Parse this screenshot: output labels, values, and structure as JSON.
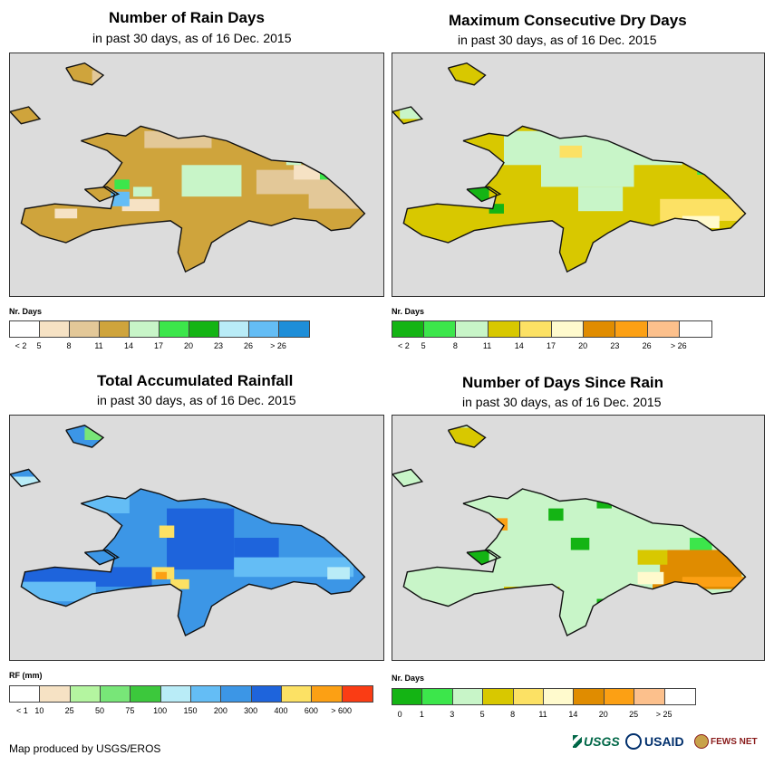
{
  "panels": [
    {
      "title": "Number of Rain Days",
      "subtitle": "in past 30 days, as of 16 Dec. 2015",
      "legend_title": "Nr. Days",
      "legend_colors": [
        "#ffffff",
        "#f6e2c4",
        "#e3c898",
        "#cfa43c",
        "#c8f5c8",
        "#3ce64b",
        "#14b414",
        "#b9ecf7",
        "#64bdf5",
        "#1e8ed8"
      ],
      "legend_labels": [
        "< 2",
        "5",
        "8",
        "11",
        "14",
        "17",
        "20",
        "23",
        "26",
        "> 26"
      ],
      "base_color": "#cfa43c",
      "patches": [
        {
          "c": "#e3c898",
          "r": [
            [
              0.36,
              0.32,
              0.18,
              0.07
            ],
            [
              0.66,
              0.48,
              0.3,
              0.1
            ],
            [
              0.8,
              0.56,
              0.15,
              0.08
            ],
            [
              0.22,
              0.07,
              0.06,
              0.05
            ]
          ]
        },
        {
          "c": "#f6e2c4",
          "r": [
            [
              0.3,
              0.6,
              0.1,
              0.05
            ],
            [
              0.76,
              0.46,
              0.12,
              0.06
            ],
            [
              0.12,
              0.64,
              0.06,
              0.04
            ]
          ]
        },
        {
          "c": "#c8f5c8",
          "r": [
            [
              0.46,
              0.46,
              0.16,
              0.13
            ],
            [
              0.33,
              0.55,
              0.05,
              0.04
            ],
            [
              0.74,
              0.41,
              0.04,
              0.05
            ]
          ]
        },
        {
          "c": "#64bdf5",
          "r": [
            [
              0.27,
              0.57,
              0.05,
              0.06
            ]
          ]
        },
        {
          "c": "#3ce64b",
          "r": [
            [
              0.83,
              0.47,
              0.04,
              0.05
            ],
            [
              0.28,
              0.52,
              0.04,
              0.04
            ]
          ]
        }
      ]
    },
    {
      "title": "Maximum Consecutive Dry Days",
      "subtitle": "in past 30 days, as of 16 Dec. 2015",
      "legend_title": "Nr. Days",
      "legend_colors": [
        "#14b414",
        "#3ce64b",
        "#c8f5c8",
        "#d8c800",
        "#fce164",
        "#fffacd",
        "#e08c00",
        "#fca014",
        "#fcc08c",
        "#ffffff"
      ],
      "legend_labels": [
        "< 2",
        "5",
        "8",
        "11",
        "14",
        "17",
        "20",
        "23",
        "26",
        "> 26"
      ],
      "base_color": "#d8c800",
      "patches": [
        {
          "c": "#c8f5c8",
          "r": [
            [
              0.3,
              0.32,
              0.48,
              0.14
            ],
            [
              0.4,
              0.43,
              0.25,
              0.12
            ],
            [
              0.5,
              0.55,
              0.12,
              0.1
            ],
            [
              0.02,
              0.22,
              0.08,
              0.05
            ]
          ]
        },
        {
          "c": "#fce164",
          "r": [
            [
              0.72,
              0.6,
              0.25,
              0.09
            ],
            [
              0.45,
              0.38,
              0.06,
              0.05
            ]
          ]
        },
        {
          "c": "#fffacd",
          "r": [
            [
              0.78,
              0.67,
              0.1,
              0.05
            ]
          ]
        },
        {
          "c": "#14b414",
          "r": [
            [
              0.19,
              0.55,
              0.07,
              0.08
            ],
            [
              0.26,
              0.62,
              0.04,
              0.04
            ]
          ]
        },
        {
          "c": "#3ce64b",
          "r": [
            [
              0.82,
              0.45,
              0.05,
              0.05
            ]
          ]
        }
      ]
    },
    {
      "title": "Total Accumulated Rainfall",
      "subtitle": "in past 30 days, as of 16 Dec. 2015",
      "legend_title": "RF (mm)",
      "legend_colors": [
        "#ffffff",
        "#f6e2c4",
        "#b4f5a0",
        "#78e678",
        "#3cc83c",
        "#b9ecf7",
        "#64bdf5",
        "#3c96e6",
        "#1e64dc",
        "#fce164",
        "#fca014",
        "#fa3c14"
      ],
      "legend_labels": [
        "< 1",
        "10",
        "25",
        "50",
        "75",
        "100",
        "150",
        "200",
        "300",
        "400",
        "600",
        "> 600"
      ],
      "base_color": "#3c96e6",
      "patches": [
        {
          "c": "#1e64dc",
          "r": [
            [
              0.42,
              0.38,
              0.18,
              0.25
            ],
            [
              0.03,
              0.62,
              0.35,
              0.08
            ],
            [
              0.6,
              0.5,
              0.12,
              0.1
            ]
          ]
        },
        {
          "c": "#64bdf5",
          "r": [
            [
              0.6,
              0.58,
              0.32,
              0.08
            ],
            [
              0.03,
              0.68,
              0.2,
              0.08
            ],
            [
              0.2,
              0.3,
              0.12,
              0.1
            ]
          ]
        },
        {
          "c": "#b9ecf7",
          "r": [
            [
              0.0,
              0.25,
              0.1,
              0.08
            ],
            [
              0.85,
              0.62,
              0.06,
              0.05
            ]
          ]
        },
        {
          "c": "#fce164",
          "r": [
            [
              0.38,
              0.62,
              0.06,
              0.05
            ],
            [
              0.43,
              0.67,
              0.05,
              0.04
            ],
            [
              0.4,
              0.45,
              0.04,
              0.05
            ]
          ]
        },
        {
          "c": "#fca014",
          "r": [
            [
              0.39,
              0.64,
              0.03,
              0.03
            ]
          ]
        },
        {
          "c": "#78e678",
          "r": [
            [
              0.2,
              0.05,
              0.1,
              0.05
            ],
            [
              0.66,
              0.35,
              0.04,
              0.04
            ]
          ]
        }
      ]
    },
    {
      "title": "Number of Days Since Rain",
      "subtitle": "in past 30 days, as of 16 Dec. 2015",
      "legend_title": "Nr. Days",
      "legend_colors": [
        "#14b414",
        "#3ce64b",
        "#c8f5c8",
        "#d8c800",
        "#fce164",
        "#fffacd",
        "#e08c00",
        "#fca014",
        "#fcc08c",
        "#ffffff"
      ],
      "legend_labels": [
        "0",
        "1",
        "3",
        "5",
        "8",
        "11",
        "14",
        "20",
        "25",
        "> 25"
      ],
      "base_color": "#c8f5c8",
      "patches": [
        {
          "c": "#e08c00",
          "r": [
            [
              0.72,
              0.55,
              0.22,
              0.12
            ],
            [
              0.7,
              0.66,
              0.28,
              0.05
            ]
          ]
        },
        {
          "c": "#fca014",
          "r": [
            [
              0.78,
              0.66,
              0.18,
              0.04
            ],
            [
              0.28,
              0.42,
              0.03,
              0.05
            ]
          ]
        },
        {
          "c": "#d8c800",
          "r": [
            [
              0.66,
              0.55,
              0.08,
              0.06
            ],
            [
              0.3,
              0.7,
              0.15,
              0.04
            ],
            [
              0.15,
              0.05,
              0.1,
              0.08
            ]
          ]
        },
        {
          "c": "#14b414",
          "r": [
            [
              0.2,
              0.55,
              0.06,
              0.06
            ],
            [
              0.48,
              0.5,
              0.05,
              0.05
            ],
            [
              0.55,
              0.34,
              0.04,
              0.04
            ],
            [
              0.42,
              0.38,
              0.04,
              0.05
            ],
            [
              0.55,
              0.75,
              0.06,
              0.08
            ]
          ]
        },
        {
          "c": "#fffacd",
          "r": [
            [
              0.66,
              0.64,
              0.07,
              0.05
            ]
          ]
        },
        {
          "c": "#3ce64b",
          "r": [
            [
              0.8,
              0.5,
              0.06,
              0.05
            ]
          ]
        }
      ]
    }
  ],
  "credit": "Map produced by USGS/EROS",
  "logos": {
    "usgs": "USGS",
    "usaid": "USAID",
    "fews": "FEWS NET"
  }
}
